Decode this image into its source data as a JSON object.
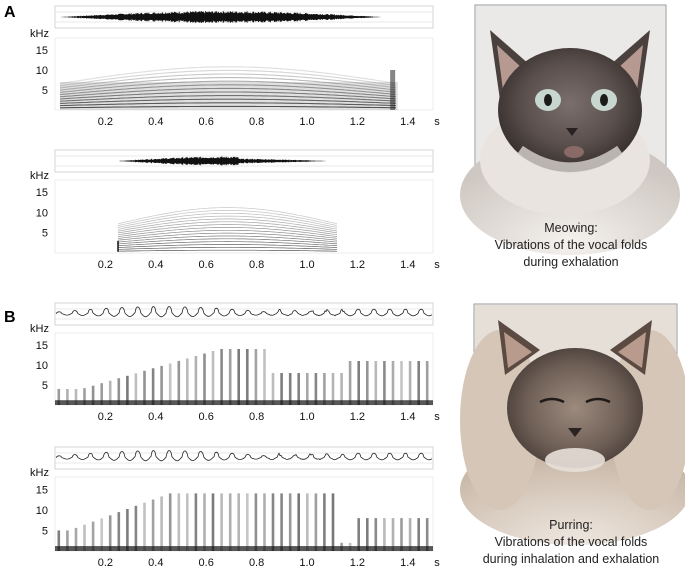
{
  "panels": [
    {
      "letter": "A",
      "caption": [
        "Meowing:",
        "Vibrations of the vocal folds",
        "during exhalation"
      ],
      "photo_icon": "cat-meowing-photo-icon",
      "recordings": [
        {
          "unit": "kHz",
          "y_ticks": [
            "15",
            "10",
            "5"
          ],
          "x_ticks": [
            "0.2",
            "0.4",
            "0.6",
            "0.8",
            "1.0",
            "1.2",
            "1.4"
          ],
          "x_unit": "s",
          "signal_start": 0.02,
          "signal_end": 1.36,
          "type": "meow"
        },
        {
          "unit": "kHz",
          "y_ticks": [
            "15",
            "10",
            "5"
          ],
          "x_ticks": [
            "0.2",
            "0.4",
            "0.6",
            "0.8",
            "1.0",
            "1.2",
            "1.4"
          ],
          "x_unit": "s",
          "signal_start": 0.25,
          "signal_end": 1.12,
          "type": "meow"
        }
      ]
    },
    {
      "letter": "B",
      "caption": [
        "Purring:",
        "Vibrations of the vocal folds",
        "during inhalation and exhalation"
      ],
      "photo_icon": "cat-purring-photo-icon",
      "recordings": [
        {
          "unit": "kHz",
          "y_ticks": [
            "15",
            "10",
            "5"
          ],
          "x_ticks": [
            "0.2",
            "0.4",
            "0.6",
            "0.8",
            "1.0",
            "1.2",
            "1.4"
          ],
          "x_unit": "s",
          "signal_start": 0.0,
          "signal_end": 1.45,
          "type": "purr"
        },
        {
          "unit": "kHz",
          "y_ticks": [
            "15",
            "10",
            "5"
          ],
          "x_ticks": [
            "0.2",
            "0.4",
            "0.6",
            "0.8",
            "1.0",
            "1.2",
            "1.4"
          ],
          "x_unit": "s",
          "signal_start": 0.0,
          "signal_end": 1.45,
          "type": "purr"
        }
      ]
    }
  ]
}
